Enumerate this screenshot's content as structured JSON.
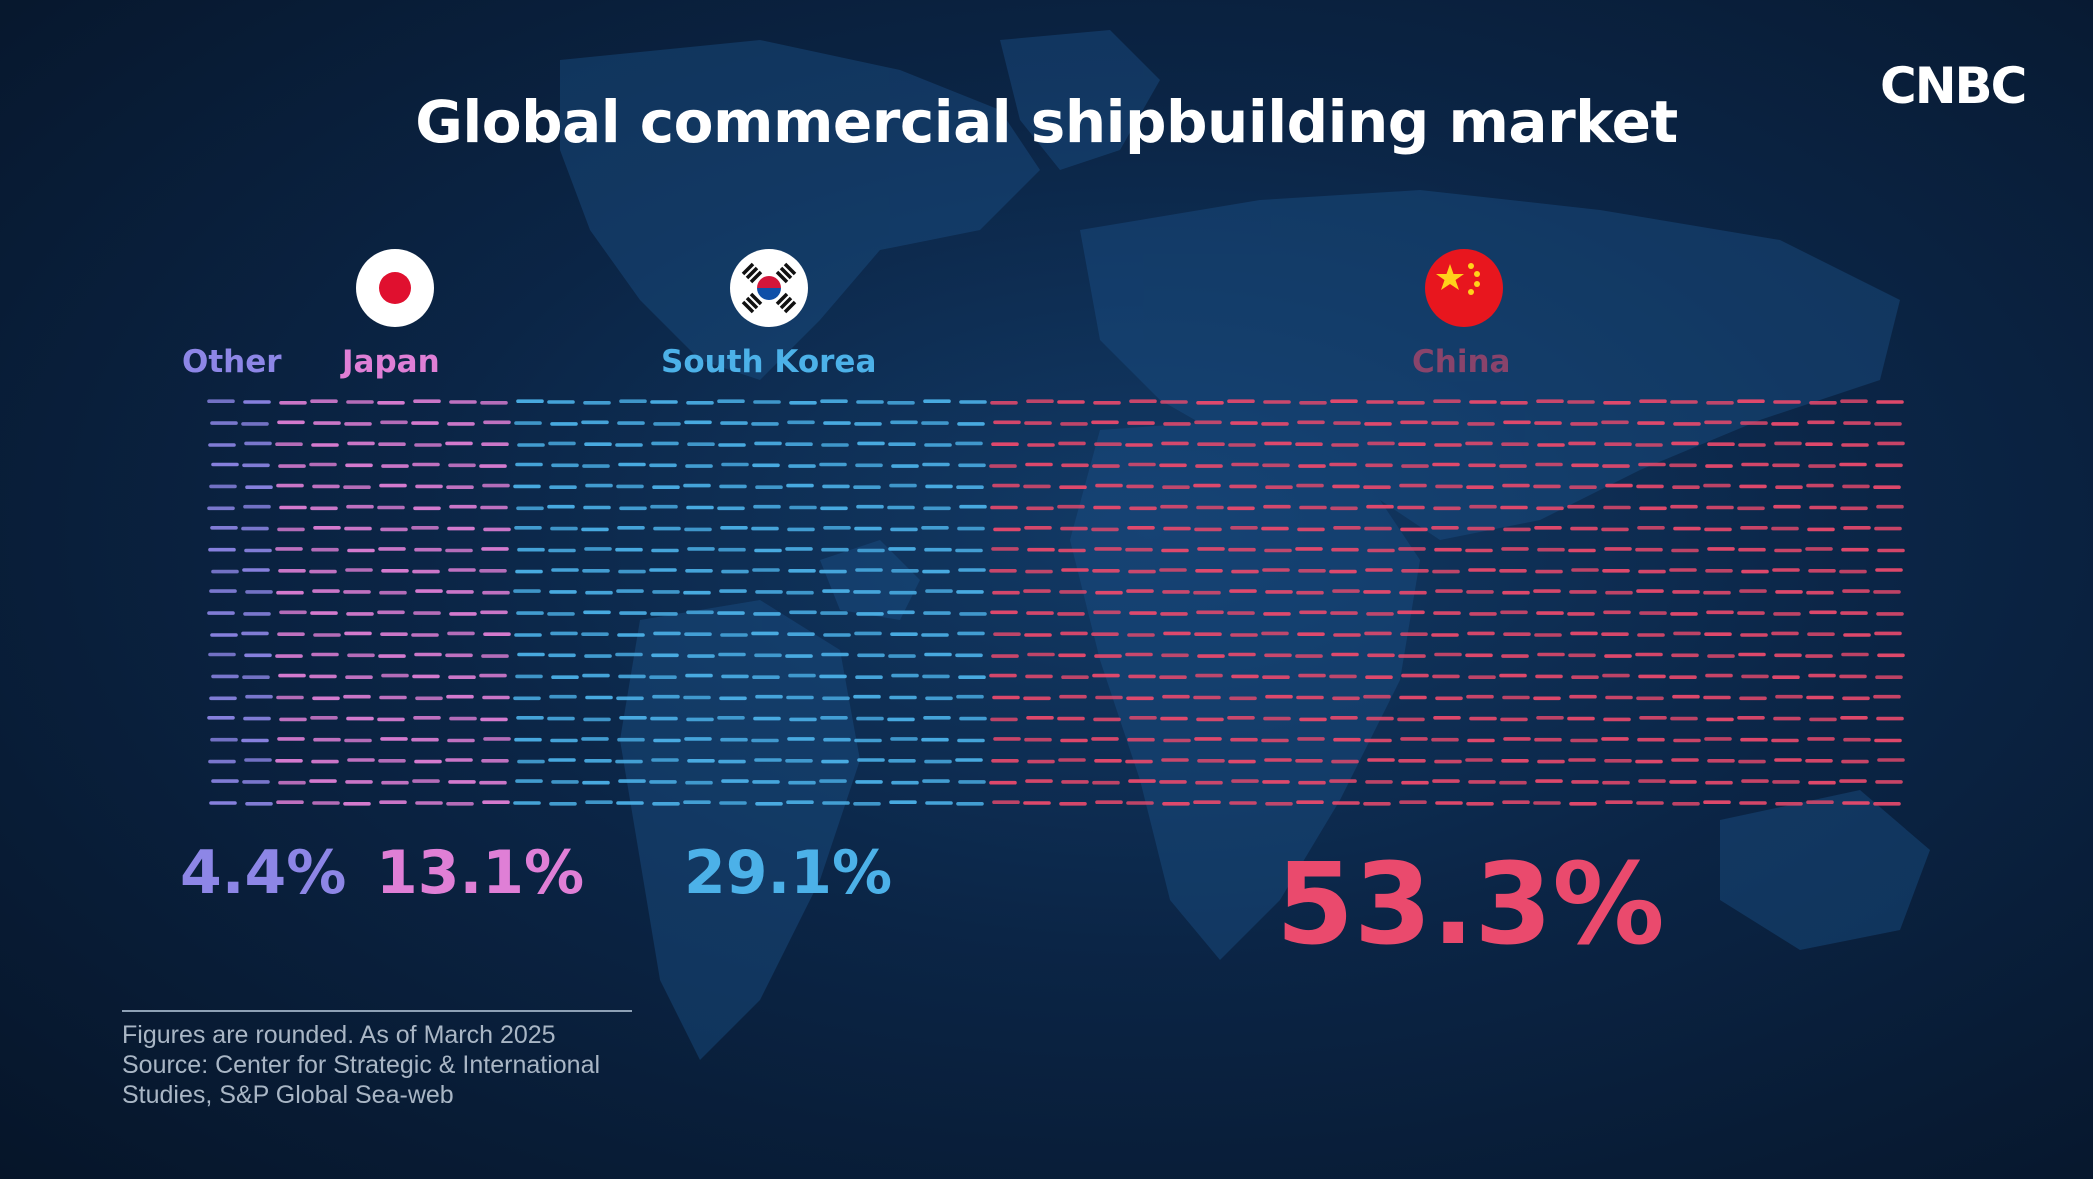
{
  "header": {
    "title": "Global commercial shipbuilding market",
    "logo_text": "CNBC"
  },
  "chart_data": {
    "type": "bar",
    "title": "Global commercial shipbuilding market",
    "categories": [
      "Other",
      "Japan",
      "South Korea",
      "China"
    ],
    "values": [
      4.4,
      13.1,
      29.1,
      53.3
    ],
    "value_labels": [
      "4.4%",
      "13.1%",
      "29.1%",
      "53.3%"
    ],
    "unit": "%",
    "colors": [
      "#8d86e6",
      "#df7fd6",
      "#4cb1e8",
      "#ea4a6d"
    ],
    "flags": [
      "",
      "japan-flag",
      "south-korea-flag",
      "china-flag"
    ],
    "grid": false
  },
  "footer": {
    "note_lines": [
      "Figures are rounded. As of March 2025",
      "Source: Center for Strategic & International",
      "Studies, S&P Global Sea-web"
    ]
  }
}
